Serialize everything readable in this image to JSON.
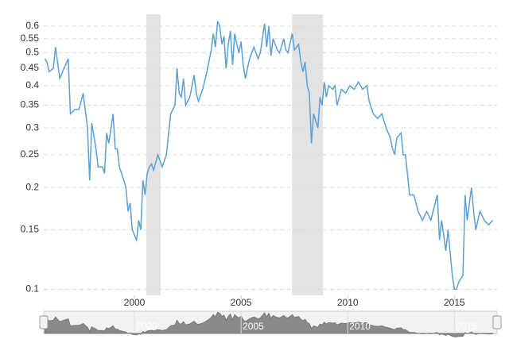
{
  "chart_data": {
    "type": "line",
    "log_y": true,
    "grid": true,
    "xlim": [
      1995.75,
      2017.0
    ],
    "xticks": [
      2000,
      2005,
      2010,
      2015
    ],
    "ylim": [
      0.096,
      0.65
    ],
    "yticks": [
      0.1,
      0.15,
      0.2,
      0.25,
      0.3,
      0.35,
      0.4,
      0.45,
      0.5,
      0.55,
      0.6
    ],
    "shaded_ranges": [
      [
        2000.56,
        2001.23
      ],
      [
        2007.39,
        2008.84
      ]
    ],
    "shade_color": "#e3e3e3",
    "series": [
      {
        "color": "#5a9fd6",
        "x": [
          1995.8,
          1995.9,
          1996.0,
          1996.2,
          1996.3,
          1996.5,
          1996.7,
          1996.9,
          1997.0,
          1997.2,
          1997.4,
          1997.6,
          1997.8,
          1997.9,
          1998.0,
          1998.2,
          1998.3,
          1998.5,
          1998.6,
          1998.7,
          1998.8,
          1999.0,
          1999.1,
          1999.2,
          1999.3,
          1999.5,
          1999.6,
          1999.7,
          1999.8,
          1999.9,
          2000.1,
          2000.2,
          2000.3,
          2000.4,
          2000.5,
          2000.6,
          2000.7,
          2000.8,
          2000.9,
          2001.1,
          2001.3,
          2001.5,
          2001.7,
          2001.9,
          2002.0,
          2002.1,
          2002.2,
          2002.3,
          2002.4,
          2002.6,
          2002.8,
          2002.9,
          2003.0,
          2003.2,
          2003.4,
          2003.6,
          2003.7,
          2003.8,
          2003.9,
          2004.0,
          2004.1,
          2004.2,
          2004.3,
          2004.4,
          2004.5,
          2004.6,
          2004.7,
          2004.8,
          2004.9,
          2005.0,
          2005.1,
          2005.2,
          2005.4,
          2005.6,
          2005.8,
          2005.9,
          2006.0,
          2006.1,
          2006.2,
          2006.3,
          2006.4,
          2006.5,
          2006.7,
          2006.8,
          2007.0,
          2007.1,
          2007.2,
          2007.4,
          2007.5,
          2007.7,
          2007.8,
          2007.9,
          2008.0,
          2008.1,
          2008.2,
          2008.3,
          2008.4,
          2008.6,
          2008.7,
          2008.8,
          2008.9,
          2009.0,
          2009.1,
          2009.3,
          2009.4,
          2009.5,
          2009.7,
          2009.9,
          2010.1,
          2010.3,
          2010.5,
          2010.7,
          2010.9,
          2011.0,
          2011.2,
          2011.4,
          2011.6,
          2011.8,
          2012.0,
          2012.1,
          2012.2,
          2012.3,
          2012.5,
          2012.6,
          2012.7,
          2012.8,
          2012.9,
          2013.1,
          2013.3,
          2013.5,
          2013.7,
          2013.9,
          2014.0,
          2014.2,
          2014.3,
          2014.4,
          2014.6,
          2014.7,
          2014.9,
          2015.0,
          2015.1,
          2015.2,
          2015.4,
          2015.5,
          2015.6,
          2015.8,
          2015.9,
          2016.0,
          2016.2,
          2016.4,
          2016.6,
          2016.8
        ],
        "values": [
          0.48,
          0.47,
          0.44,
          0.45,
          0.52,
          0.42,
          0.45,
          0.48,
          0.33,
          0.34,
          0.34,
          0.38,
          0.3,
          0.21,
          0.31,
          0.26,
          0.23,
          0.23,
          0.22,
          0.29,
          0.27,
          0.33,
          0.26,
          0.26,
          0.23,
          0.21,
          0.2,
          0.17,
          0.18,
          0.15,
          0.14,
          0.16,
          0.15,
          0.21,
          0.19,
          0.22,
          0.23,
          0.235,
          0.225,
          0.25,
          0.23,
          0.25,
          0.33,
          0.35,
          0.45,
          0.38,
          0.37,
          0.42,
          0.35,
          0.37,
          0.43,
          0.38,
          0.36,
          0.39,
          0.44,
          0.51,
          0.57,
          0.52,
          0.62,
          0.6,
          0.53,
          0.56,
          0.45,
          0.53,
          0.58,
          0.46,
          0.57,
          0.53,
          0.5,
          0.54,
          0.46,
          0.42,
          0.48,
          0.52,
          0.48,
          0.5,
          0.55,
          0.61,
          0.52,
          0.6,
          0.49,
          0.55,
          0.51,
          0.5,
          0.55,
          0.51,
          0.5,
          0.57,
          0.51,
          0.53,
          0.47,
          0.44,
          0.47,
          0.4,
          0.38,
          0.27,
          0.33,
          0.3,
          0.37,
          0.35,
          0.41,
          0.37,
          0.4,
          0.39,
          0.4,
          0.35,
          0.39,
          0.38,
          0.4,
          0.39,
          0.41,
          0.39,
          0.4,
          0.36,
          0.33,
          0.32,
          0.33,
          0.3,
          0.28,
          0.26,
          0.25,
          0.28,
          0.29,
          0.25,
          0.25,
          0.22,
          0.19,
          0.19,
          0.17,
          0.16,
          0.17,
          0.16,
          0.17,
          0.19,
          0.14,
          0.16,
          0.13,
          0.15,
          0.11,
          0.1,
          0.1,
          0.105,
          0.11,
          0.19,
          0.16,
          0.2,
          0.17,
          0.15,
          0.17,
          0.16,
          0.155,
          0.16
        ]
      }
    ]
  }
}
